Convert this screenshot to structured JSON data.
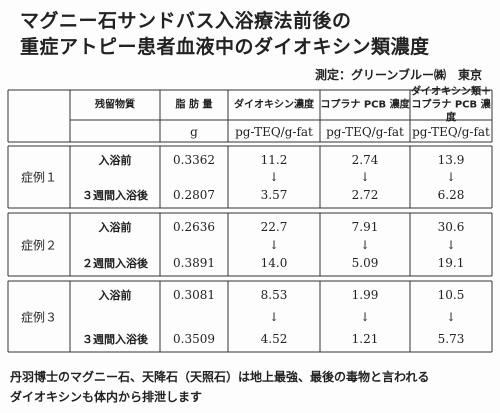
{
  "header": {
    "title_lines": [
      "マグニー石サンドバス入浴療法前後の",
      "重症アトピー患者血液中のダイオキシン類濃度"
    ],
    "measured_by": "測定：グリーンブルー㈱　東京"
  },
  "table": {
    "columns": [
      {
        "lines": [
          "残留物質"
        ]
      },
      {
        "lines": [
          "脂 肪 量"
        ]
      },
      {
        "lines": [
          "ダイオキシン濃度"
        ]
      },
      {
        "lines": [
          "コプラナ PCB 濃度"
        ]
      },
      {
        "lines": [
          "ダイオキシン類＋",
          "コプラナ PCB 濃度"
        ]
      }
    ],
    "units": [
      "g",
      "pg-TEQ/g-fat",
      "pg-TEQ/g-fat",
      "pg-TEQ/g-fat"
    ],
    "cases": [
      {
        "label": "症例１",
        "rows": [
          [
            "入浴前",
            "0.3362",
            "11.2",
            "2.74",
            "13.9"
          ],
          [
            "３週間入浴後",
            "0.2807",
            "3.57",
            "2.72",
            "6.28"
          ]
        ]
      },
      {
        "label": "症例２",
        "rows": [
          [
            "入浴前",
            "0.2636",
            "22.7",
            "7.91",
            "30.6"
          ],
          [
            "２週間入浴後",
            "0.3891",
            "14.0",
            "5.09",
            "19.1"
          ]
        ]
      },
      {
        "label": "症例３",
        "rows": [
          [
            "入浴前",
            "0.3081",
            "8.53",
            "1.99",
            "10.5"
          ],
          [
            "３週間入浴後",
            "0.3509",
            "4.52",
            "1.21",
            "5.73"
          ]
        ]
      }
    ]
  },
  "footer": {
    "lines": [
      "丹羽博士のマグニー石、天降石（天照石）は地上最強、最後の毒物と言われる",
      "ダイオキシンも体内から排泄します"
    ]
  }
}
